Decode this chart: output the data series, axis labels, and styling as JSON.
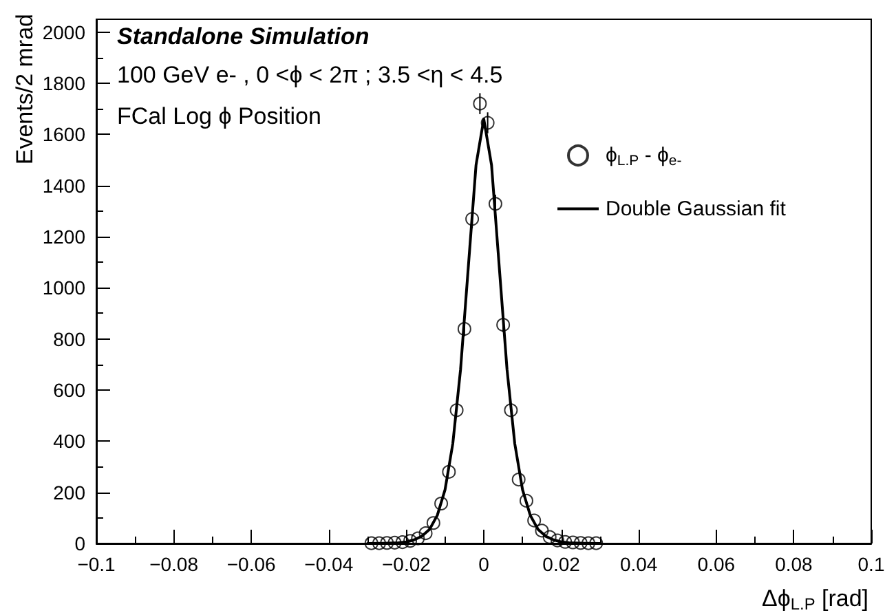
{
  "chart_data": {
    "type": "scatter",
    "title": "Standalone Simulation",
    "annotations": [
      "100 GeV e- , 0 <ϕ < 2π ; 3.5 <η < 4.5",
      "FCal Log ϕ Position"
    ],
    "xlabel": "Δϕ$_{L.P}$ [rad]",
    "ylabel": "Events/2 mrad",
    "x": [
      -0.029,
      -0.027,
      -0.025,
      -0.023,
      -0.021,
      -0.019,
      -0.017,
      -0.015,
      -0.013,
      -0.011,
      -0.009,
      -0.007,
      -0.005,
      -0.003,
      -0.001,
      0.001,
      0.003,
      0.005,
      0.007,
      0.009,
      0.011,
      0.013,
      0.015,
      0.017,
      0.019,
      0.021,
      0.023,
      0.025,
      0.027,
      0.029
    ],
    "series": [
      {
        "name": "ϕ$_{L.P}$ - ϕ$_{e-}$",
        "color": "#000000",
        "marker": "circle",
        "values": [
          1,
          1,
          2,
          3,
          5,
          10,
          20,
          40,
          80,
          156,
          280,
          521,
          839,
          1269,
          1720,
          1645,
          1328,
          855,
          521,
          250,
          167,
          90,
          50,
          25,
          12,
          6,
          4,
          2,
          1,
          1
        ],
        "errors": [
          null,
          null,
          null,
          null,
          null,
          null,
          null,
          null,
          null,
          null,
          null,
          null,
          29,
          36,
          41,
          41,
          36,
          29,
          null,
          null,
          null,
          null,
          null,
          null,
          null,
          null,
          null,
          null,
          null,
          null
        ]
      },
      {
        "name": "Double Gaussian fit",
        "type": "line",
        "color": "#000000",
        "line_style": "solid",
        "marker": "none",
        "x": [
          -0.03,
          -0.026,
          -0.022,
          -0.02,
          -0.018,
          -0.016,
          -0.014,
          -0.012,
          -0.01,
          -0.008,
          -0.006,
          -0.004,
          -0.002,
          0,
          0.002,
          0.004,
          0.006,
          0.008,
          0.01,
          0.012,
          0.014,
          0.016,
          0.018,
          0.02,
          0.022,
          0.026,
          0.03
        ],
        "values": [
          0,
          1,
          3,
          6,
          14,
          28,
          55,
          110,
          210,
          390,
          680,
          1080,
          1480,
          1660,
          1480,
          1080,
          680,
          390,
          210,
          110,
          55,
          28,
          14,
          6,
          3,
          1,
          0
        ]
      }
    ],
    "xlim": [
      -0.1,
      0.1
    ],
    "xticks": [
      -0.1,
      -0.08,
      -0.06,
      -0.04,
      -0.02,
      0,
      0.02,
      0.04,
      0.06,
      0.08,
      0.1
    ],
    "ylim": [
      0,
      2050
    ],
    "yticks": [
      0,
      200,
      400,
      600,
      800,
      1000,
      1200,
      1400,
      1600,
      1800,
      2000
    ],
    "grid": false,
    "legend": "top right"
  }
}
